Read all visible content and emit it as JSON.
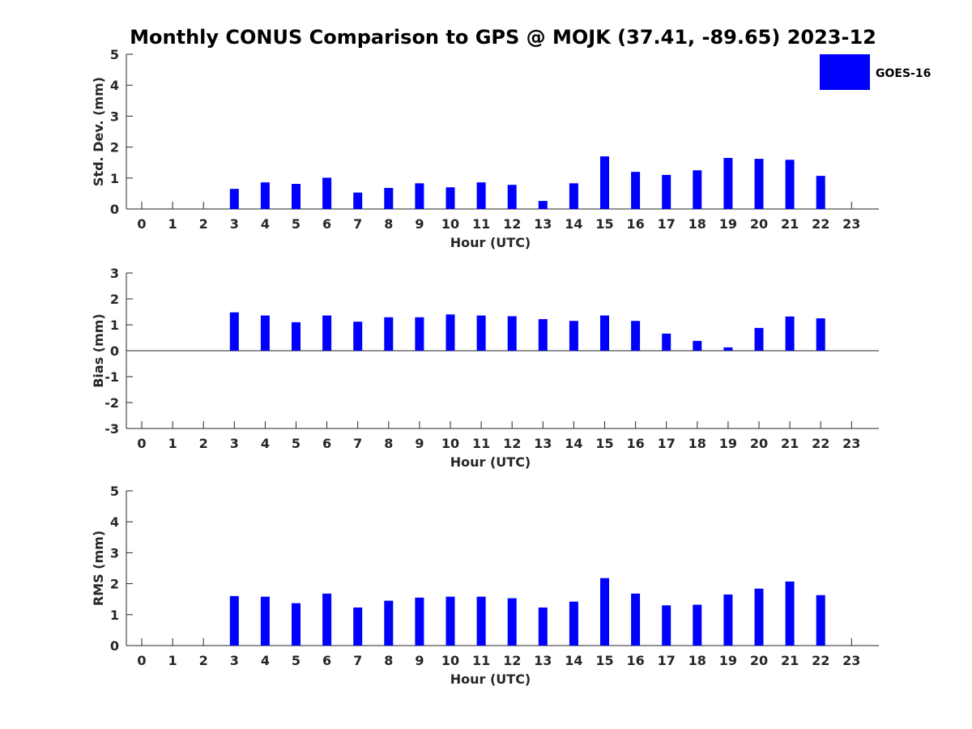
{
  "title": "Monthly CONUS Comparison to GPS @ MOJK (37.41, -89.65) 2023-12",
  "legend": {
    "label": "GOES-16",
    "color": "#0000ff"
  },
  "chart_data": [
    {
      "type": "bar",
      "title": "Monthly CONUS Comparison to GPS @ MOJK (37.41, -89.65) 2023-12",
      "xlabel": "Hour (UTC)",
      "ylabel": "Std. Dev. (mm)",
      "ylim": [
        0,
        5
      ],
      "yticks": [
        "0",
        "1",
        "2",
        "3",
        "4",
        "5"
      ],
      "categories": [
        "0",
        "1",
        "2",
        "3",
        "4",
        "5",
        "6",
        "7",
        "8",
        "9",
        "10",
        "11",
        "12",
        "13",
        "14",
        "15",
        "16",
        "17",
        "18",
        "19",
        "20",
        "21",
        "22",
        "23"
      ],
      "series": [
        {
          "name": "GOES-16",
          "color": "#0000ff",
          "values": [
            null,
            null,
            null,
            0.65,
            0.86,
            0.81,
            1.01,
            0.53,
            0.68,
            0.83,
            0.7,
            0.86,
            0.78,
            0.26,
            0.83,
            1.7,
            1.2,
            1.1,
            1.25,
            1.65,
            1.62,
            1.59,
            1.07,
            null
          ]
        }
      ],
      "grid": false,
      "legend_position": "top-right"
    },
    {
      "type": "bar",
      "xlabel": "Hour (UTC)",
      "ylabel": "Bias (mm)",
      "ylim": [
        -3,
        3
      ],
      "yticks": [
        "-3",
        "-2",
        "-1",
        "0",
        "1",
        "2",
        "3"
      ],
      "zero_line": true,
      "categories": [
        "0",
        "1",
        "2",
        "3",
        "4",
        "5",
        "6",
        "7",
        "8",
        "9",
        "10",
        "11",
        "12",
        "13",
        "14",
        "15",
        "16",
        "17",
        "18",
        "19",
        "20",
        "21",
        "22",
        "23"
      ],
      "series": [
        {
          "name": "GOES-16",
          "color": "#0000ff",
          "values": [
            null,
            null,
            null,
            1.48,
            1.36,
            1.1,
            1.36,
            1.12,
            1.29,
            1.29,
            1.4,
            1.36,
            1.33,
            1.22,
            1.15,
            1.36,
            1.15,
            0.66,
            0.38,
            0.13,
            0.88,
            1.32,
            1.25,
            null
          ]
        }
      ],
      "grid": false
    },
    {
      "type": "bar",
      "xlabel": "Hour (UTC)",
      "ylabel": "RMS (mm)",
      "ylim": [
        0,
        5
      ],
      "yticks": [
        "0",
        "1",
        "2",
        "3",
        "4",
        "5"
      ],
      "categories": [
        "0",
        "1",
        "2",
        "3",
        "4",
        "5",
        "6",
        "7",
        "8",
        "9",
        "10",
        "11",
        "12",
        "13",
        "14",
        "15",
        "16",
        "17",
        "18",
        "19",
        "20",
        "21",
        "22",
        "23"
      ],
      "series": [
        {
          "name": "GOES-16",
          "color": "#0000ff",
          "values": [
            null,
            null,
            null,
            1.6,
            1.58,
            1.37,
            1.68,
            1.23,
            1.45,
            1.55,
            1.58,
            1.58,
            1.53,
            1.23,
            1.42,
            2.18,
            1.68,
            1.3,
            1.32,
            1.65,
            1.84,
            2.07,
            1.63,
            null
          ]
        }
      ],
      "grid": false
    }
  ]
}
